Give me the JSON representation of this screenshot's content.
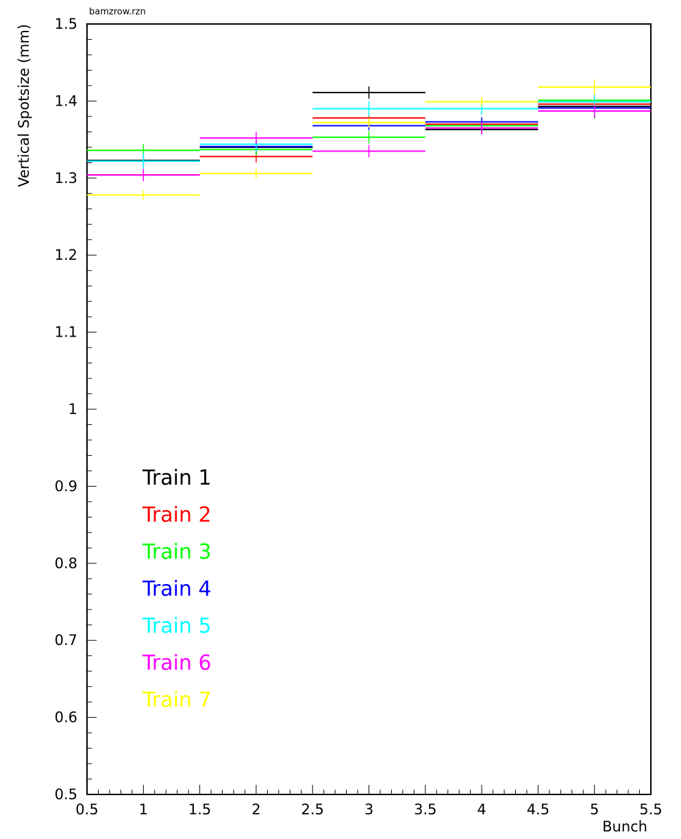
{
  "chart_data": {
    "type": "line",
    "file_label": "bamzrow.rzn",
    "xlabel": "Bunch",
    "ylabel": "Vertical Spotsize (mm)",
    "xlim": [
      0.5,
      5.5
    ],
    "ylim": [
      0.5,
      1.5
    ],
    "x_ticks": [
      "0.5",
      "1",
      "1.5",
      "2",
      "2.5",
      "3",
      "3.5",
      "4",
      "4.5",
      "5",
      "5.5"
    ],
    "y_ticks": [
      "0.5",
      "0.6",
      "0.7",
      "0.8",
      "0.9",
      "1",
      "1.1",
      "1.2",
      "1.3",
      "1.4",
      "1.5"
    ],
    "x": [
      1,
      2,
      3,
      4,
      5
    ],
    "bin_width": 1,
    "grid": false,
    "legend_position": "lower-left",
    "series": [
      {
        "name": "Train 1",
        "color": "#000000",
        "values": [
          1.323,
          1.34,
          1.411,
          1.363,
          1.393
        ],
        "errors": [
          0.008,
          0.01,
          0.008,
          0.006,
          0.015
        ]
      },
      {
        "name": "Train 2",
        "color": "#ff0000",
        "values": [
          1.304,
          1.328,
          1.378,
          1.37,
          1.396
        ],
        "errors": [
          0.006,
          0.008,
          0.006,
          0.006,
          0.006
        ]
      },
      {
        "name": "Train 3",
        "color": "#00ff00",
        "values": [
          1.336,
          1.337,
          1.353,
          1.368,
          1.401
        ],
        "errors": [
          0.008,
          0.008,
          0.008,
          0.006,
          0.008
        ]
      },
      {
        "name": "Train 4",
        "color": "#0000ff",
        "values": [
          1.322,
          1.341,
          1.368,
          1.373,
          1.391
        ],
        "errors": [
          0.006,
          0.006,
          0.006,
          0.006,
          0.006
        ]
      },
      {
        "name": "Train 5",
        "color": "#00ffff",
        "values": [
          1.322,
          1.344,
          1.39,
          1.39,
          1.399
        ],
        "errors": [
          0.01,
          0.01,
          0.01,
          0.008,
          0.01
        ]
      },
      {
        "name": "Train 6",
        "color": "#ff00ff",
        "values": [
          1.304,
          1.352,
          1.335,
          1.365,
          1.387
        ],
        "errors": [
          0.008,
          0.008,
          0.008,
          0.008,
          0.008
        ]
      },
      {
        "name": "Train 7",
        "color": "#ffff00",
        "values": [
          1.278,
          1.306,
          1.372,
          1.399,
          1.418
        ],
        "errors": [
          0.006,
          0.006,
          0.006,
          0.006,
          0.01
        ]
      }
    ]
  }
}
